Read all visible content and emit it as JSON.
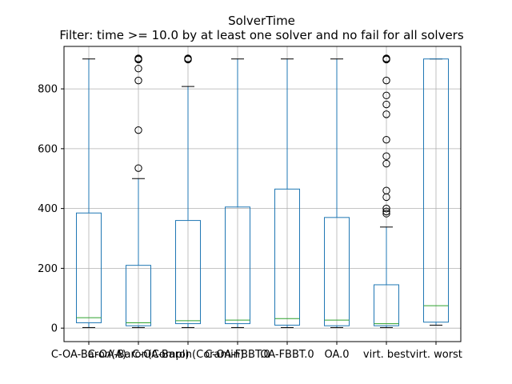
{
  "chart_data": {
    "type": "boxplot",
    "title": "SolverTime",
    "subtitle": "Filter: time >= 10.0 by at least one solver and no fail for all solvers",
    "xlabel": "",
    "ylabel": "",
    "ylim": [
      -45,
      942
    ],
    "yticks": [
      0,
      200,
      400,
      600,
      800
    ],
    "grid": true,
    "colors": {
      "box": "#1f77b4",
      "median": "#2ca02c",
      "whisker": "#1f77b4",
      "cap": "#000000",
      "flier": "#000000",
      "grid": "#b0b0b0"
    },
    "categories": [
      "C-OA-Baron(A)",
      "C-OA-Baron(Compl)",
      "C-OA-Baron(Coramin)",
      "C-OA-FBBT.0",
      "OA-FBBT.0",
      "OA.0",
      "virt. best",
      "virt. worst"
    ],
    "series": [
      {
        "category": "C-OA-Baron(A)",
        "whisker_low": 2,
        "q1": 18,
        "median": 35,
        "q3": 385,
        "whisker_high": 900,
        "fliers": []
      },
      {
        "category": "C-OA-Baron(Compl)",
        "whisker_low": 2,
        "q1": 8,
        "median": 18,
        "q3": 210,
        "whisker_high": 500,
        "fliers": [
          535,
          662,
          828,
          868,
          898,
          900,
          902
        ]
      },
      {
        "category": "C-OA-Baron(Coramin)",
        "whisker_low": 2,
        "q1": 15,
        "median": 25,
        "q3": 360,
        "whisker_high": 808,
        "fliers": [
          898,
          900,
          902
        ]
      },
      {
        "category": "C-OA-FBBT.0",
        "whisker_low": 2,
        "q1": 15,
        "median": 27,
        "q3": 405,
        "whisker_high": 900,
        "fliers": []
      },
      {
        "category": "OA-FBBT.0",
        "whisker_low": 2,
        "q1": 10,
        "median": 32,
        "q3": 465,
        "whisker_high": 900,
        "fliers": []
      },
      {
        "category": "OA.0",
        "whisker_low": 2,
        "q1": 8,
        "median": 27,
        "q3": 370,
        "whisker_high": 900,
        "fliers": []
      },
      {
        "category": "virt. best",
        "whisker_low": 2,
        "q1": 8,
        "median": 15,
        "q3": 145,
        "whisker_high": 338,
        "fliers": [
          383,
          390,
          400,
          438,
          460,
          550,
          575,
          630,
          715,
          748,
          778,
          828,
          898,
          900,
          902
        ]
      },
      {
        "category": "virt. worst",
        "whisker_low": 10,
        "q1": 20,
        "median": 75,
        "q3": 900,
        "whisker_high": 900,
        "fliers": []
      }
    ]
  }
}
